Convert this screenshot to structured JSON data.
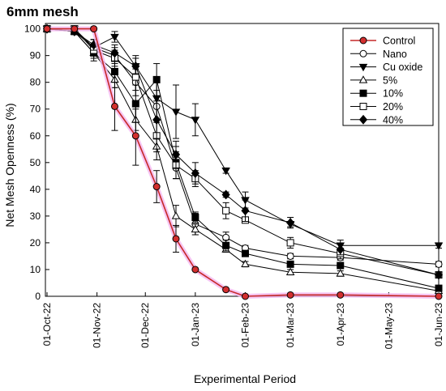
{
  "chart_data": {
    "type": "line",
    "title": "6mm mesh",
    "xlabel": "Experimental Period",
    "ylabel": "Net Mesh Openness (%)",
    "x_tick_labels": [
      "01-Oct-22",
      "01-Nov-22",
      "01-Dec-22",
      "01-Jan-23",
      "01-Feb-23",
      "01-Mar-23",
      "01-Apr-23",
      "01-May-23",
      "01-Jun-23"
    ],
    "y_ticks": [
      0,
      10,
      20,
      30,
      40,
      50,
      60,
      70,
      80,
      90,
      100
    ],
    "xlim": [
      "2022-09-30",
      "2023-06-01"
    ],
    "ylim": [
      0,
      102
    ],
    "grid": false,
    "legend_position": "top-right",
    "series": [
      {
        "name": "Control",
        "marker": "circle",
        "fill": "#d32f2f",
        "line_color": "#c62828",
        "halo_color": "#f4b6f0",
        "points": [
          [
            "2022-10-01",
            100,
            0
          ],
          [
            "2022-10-18",
            100,
            0
          ],
          [
            "2022-10-30",
            100,
            0
          ],
          [
            "2022-11-12",
            71,
            9
          ],
          [
            "2022-11-25",
            60,
            11
          ],
          [
            "2022-12-08",
            41,
            6
          ],
          [
            "2022-12-20",
            21.5,
            5
          ],
          [
            "2023-01-01",
            10,
            0
          ],
          [
            "2023-01-20",
            2.5,
            0
          ],
          [
            "2023-02-01",
            0,
            0
          ],
          [
            "2023-03-01",
            0.5,
            0
          ],
          [
            "2023-04-01",
            0.5,
            0
          ],
          [
            "2023-06-01",
            0,
            0
          ]
        ]
      },
      {
        "name": "Nano",
        "marker": "circle",
        "fill": "#ffffff",
        "line_color": "#000000",
        "points": [
          [
            "2022-10-01",
            100,
            0
          ],
          [
            "2022-10-18",
            99,
            1
          ],
          [
            "2022-10-30",
            93,
            3
          ],
          [
            "2022-11-12",
            90,
            3
          ],
          [
            "2022-11-25",
            80,
            5
          ],
          [
            "2022-12-08",
            71,
            6
          ],
          [
            "2022-12-20",
            48,
            4
          ],
          [
            "2023-01-01",
            27,
            4
          ],
          [
            "2023-01-20",
            22,
            2
          ],
          [
            "2023-02-01",
            18,
            1
          ],
          [
            "2023-03-01",
            15,
            1
          ],
          [
            "2023-04-01",
            14.5,
            1
          ],
          [
            "2023-06-01",
            12,
            1
          ]
        ]
      },
      {
        "name": "Cu oxide",
        "marker": "triangle-down",
        "fill": "#000000",
        "line_color": "#000000",
        "points": [
          [
            "2022-10-01",
            100,
            0
          ],
          [
            "2022-10-18",
            100,
            1
          ],
          [
            "2022-10-30",
            93,
            3
          ],
          [
            "2022-11-12",
            97,
            2
          ],
          [
            "2022-11-25",
            86,
            4
          ],
          [
            "2022-12-08",
            74,
            8
          ],
          [
            "2022-12-20",
            69,
            10
          ],
          [
            "2023-01-01",
            66,
            6
          ],
          [
            "2023-01-20",
            47,
            1
          ],
          [
            "2023-02-01",
            36,
            3
          ],
          [
            "2023-03-01",
            27,
            1
          ],
          [
            "2023-04-01",
            19,
            2
          ],
          [
            "2023-06-01",
            19,
            1
          ]
        ]
      },
      {
        "name": "5%",
        "marker": "triangle-up",
        "fill": "#ffffff",
        "line_color": "#000000",
        "points": [
          [
            "2022-10-01",
            100,
            0
          ],
          [
            "2022-10-18",
            99,
            1
          ],
          [
            "2022-10-30",
            91,
            3
          ],
          [
            "2022-11-12",
            81,
            3
          ],
          [
            "2022-11-25",
            66,
            4
          ],
          [
            "2022-12-08",
            56,
            5
          ],
          [
            "2022-12-20",
            30,
            4
          ],
          [
            "2023-01-01",
            25,
            2
          ],
          [
            "2023-01-20",
            17.5,
            1
          ],
          [
            "2023-02-01",
            12,
            1
          ],
          [
            "2023-03-01",
            9,
            1
          ],
          [
            "2023-04-01",
            8.5,
            1
          ],
          [
            "2023-06-01",
            2,
            1
          ]
        ]
      },
      {
        "name": "10%",
        "marker": "square",
        "fill": "#000000",
        "line_color": "#000000",
        "points": [
          [
            "2022-10-01",
            100,
            0
          ],
          [
            "2022-10-18",
            99,
            1
          ],
          [
            "2022-10-30",
            91,
            2
          ],
          [
            "2022-11-12",
            84,
            6
          ],
          [
            "2022-11-25",
            72,
            7
          ],
          [
            "2022-12-08",
            81,
            6
          ],
          [
            "2022-12-20",
            50,
            6
          ],
          [
            "2023-01-01",
            29.5,
            2
          ],
          [
            "2023-01-20",
            19,
            2
          ],
          [
            "2023-02-01",
            16,
            1
          ],
          [
            "2023-03-01",
            12,
            1
          ],
          [
            "2023-04-01",
            11.5,
            1
          ],
          [
            "2023-06-01",
            3,
            1
          ]
        ]
      },
      {
        "name": "20%",
        "marker": "square",
        "fill": "#ffffff",
        "line_color": "#000000",
        "points": [
          [
            "2022-10-01",
            100,
            0
          ],
          [
            "2022-10-18",
            100,
            1
          ],
          [
            "2022-10-30",
            92,
            2
          ],
          [
            "2022-11-12",
            89,
            3
          ],
          [
            "2022-11-25",
            82,
            5
          ],
          [
            "2022-12-08",
            60,
            6
          ],
          [
            "2022-12-20",
            49,
            5
          ],
          [
            "2023-01-01",
            44,
            3
          ],
          [
            "2023-01-20",
            32,
            3
          ],
          [
            "2023-02-01",
            28.5,
            1
          ],
          [
            "2023-03-01",
            20,
            2
          ],
          [
            "2023-04-01",
            16,
            2
          ],
          [
            "2023-06-01",
            8,
            1
          ]
        ]
      },
      {
        "name": "40%",
        "marker": "diamond",
        "fill": "#000000",
        "line_color": "#000000",
        "points": [
          [
            "2022-10-01",
            100,
            0
          ],
          [
            "2022-10-18",
            99,
            1
          ],
          [
            "2022-10-30",
            94,
            2
          ],
          [
            "2022-11-12",
            91,
            3
          ],
          [
            "2022-11-25",
            86,
            3
          ],
          [
            "2022-12-08",
            66,
            7
          ],
          [
            "2022-12-20",
            53,
            5
          ],
          [
            "2023-01-01",
            46,
            4
          ],
          [
            "2023-01-20",
            38,
            1
          ],
          [
            "2023-02-01",
            32,
            4
          ],
          [
            "2023-03-01",
            27.5,
            2
          ],
          [
            "2023-04-01",
            17.5,
            2
          ],
          [
            "2023-06-01",
            8,
            1
          ]
        ]
      }
    ]
  }
}
